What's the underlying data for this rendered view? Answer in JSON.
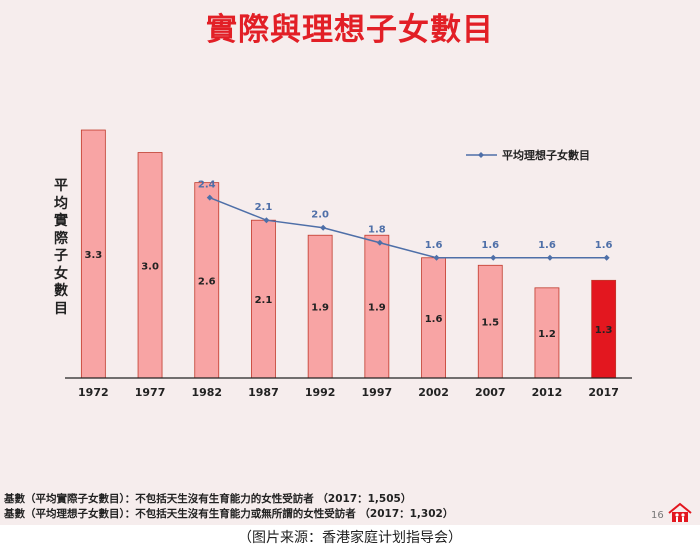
{
  "title": "實際與理想子女數目",
  "ylabel": "平均實際子女數目",
  "notes": [
    "基數（平均實際子女數目）：不包括天生沒有生育能力的女性受訪者 （2017：1,505）",
    "基數（平均理想子女數目）：不包括天生沒有生育能力或無所謂的女性受訪者 （2017：1,302）"
  ],
  "page_number": "16",
  "caption": "（图片来源：香港家庭计划指导会）",
  "colors": {
    "bar": "#f8a4a4",
    "bar_highlight": "#e3171f",
    "bar_stroke": "#c0392b",
    "line": "#4e6fa8",
    "title": "#e21f26"
  },
  "chart_data": {
    "type": "bar",
    "categories": [
      "1972",
      "1977",
      "1982",
      "1987",
      "1992",
      "1997",
      "2002",
      "2007",
      "2012",
      "2017"
    ],
    "series": [
      {
        "values": [
          3.3,
          3.0,
          2.6,
          2.1,
          1.9,
          1.9,
          1.6,
          1.5,
          1.2,
          1.3
        ],
        "highlight_index": 9
      },
      {
        "name": "平均理想子女數目",
        "type": "line",
        "values": [
          null,
          null,
          2.4,
          2.1,
          2.0,
          1.8,
          1.6,
          1.6,
          1.6,
          1.6
        ]
      }
    ],
    "ylim": [
      0,
      3.5
    ],
    "grid": false,
    "legend": "top-right"
  }
}
